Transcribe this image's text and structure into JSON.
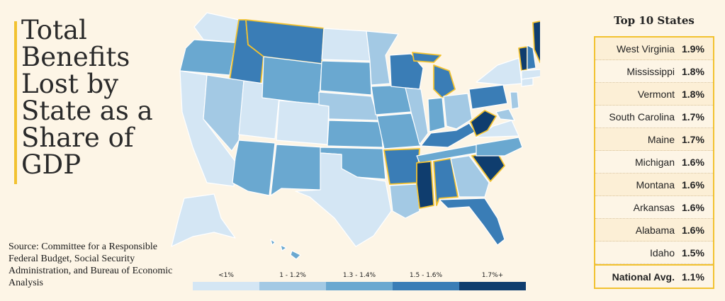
{
  "title": "Total Benefits Lost by State as a Share of GDP",
  "source": "Source: Committee for a Responsible Federal Budget, Social Security Administration, and Bureau of Economic Analysis",
  "legend": [
    {
      "label": "<1%",
      "color": "#d4e6f4"
    },
    {
      "label": "1 - 1.2%",
      "color": "#a3c9e4"
    },
    {
      "label": "1.3 - 1.4%",
      "color": "#6aa8d0"
    },
    {
      "label": "1.5 - 1.6%",
      "color": "#3a7db6"
    },
    {
      "label": "1.7%+",
      "color": "#0f3d6e"
    }
  ],
  "top_title": "Top 10 States",
  "top_states": [
    {
      "state": "West Virginia",
      "value": "1.9%"
    },
    {
      "state": "Mississippi",
      "value": "1.8%"
    },
    {
      "state": "Vermont",
      "value": "1.8%"
    },
    {
      "state": "South Carolina",
      "value": "1.7%"
    },
    {
      "state": "Maine",
      "value": "1.7%"
    },
    {
      "state": "Michigan",
      "value": "1.6%"
    },
    {
      "state": "Montana",
      "value": "1.6%"
    },
    {
      "state": "Arkansas",
      "value": "1.6%"
    },
    {
      "state": "Alabama",
      "value": "1.6%"
    },
    {
      "state": "Idaho",
      "value": "1.5%"
    }
  ],
  "national": {
    "state": "National Avg.",
    "value": "1.1%"
  }
}
